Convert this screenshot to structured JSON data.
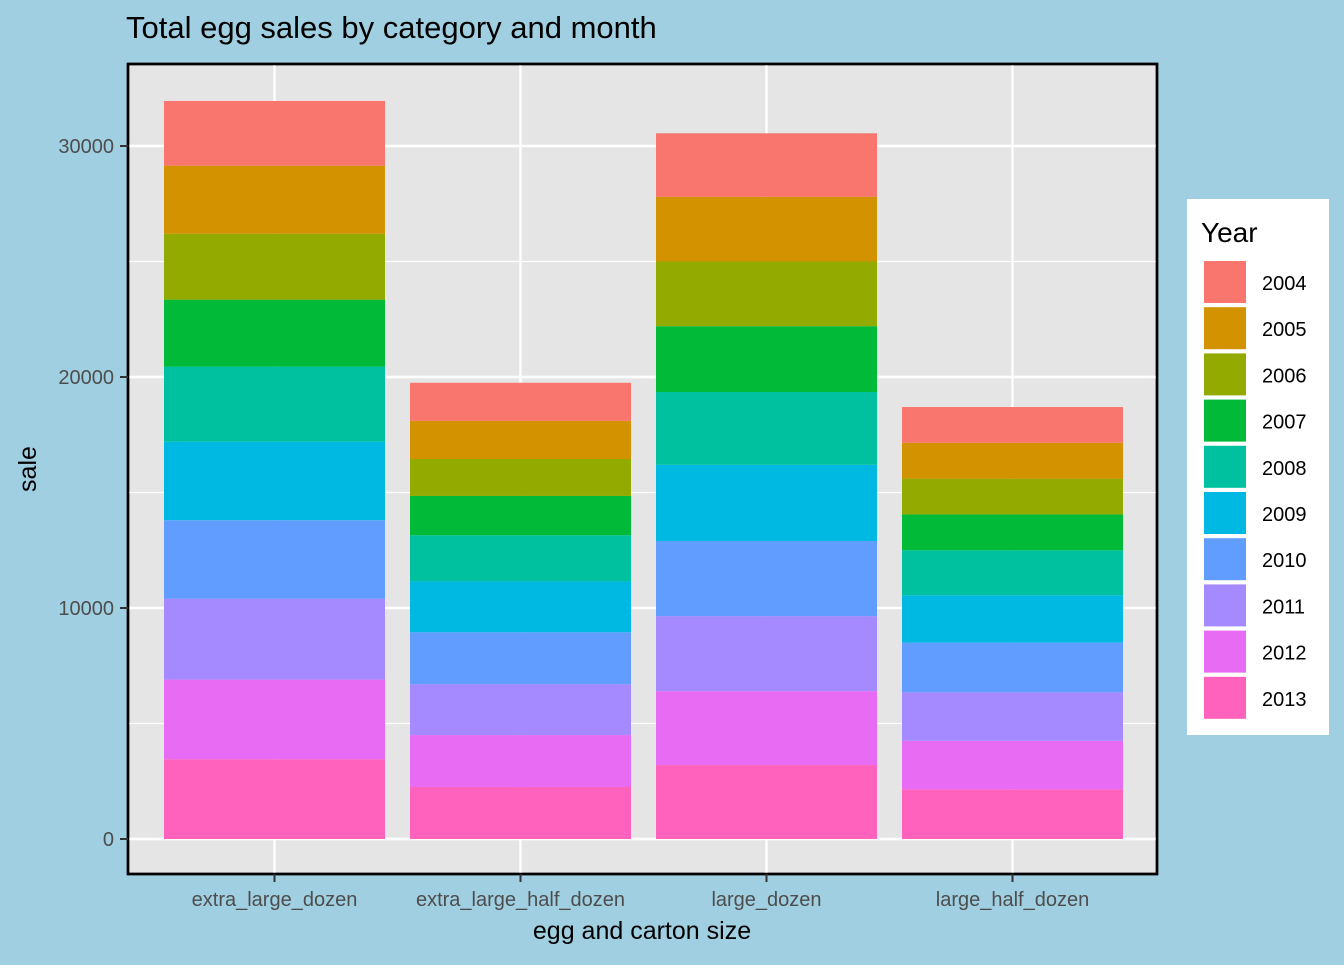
{
  "chart_data": {
    "type": "bar",
    "stacked": true,
    "title": "Total egg sales by category and month",
    "xlabel": "egg and carton size",
    "ylabel": "sale",
    "ylim": [
      0,
      33000
    ],
    "yticks": [
      0,
      10000,
      20000,
      30000
    ],
    "grid": true,
    "legend": {
      "title": "Year",
      "placement": "right"
    },
    "categories": [
      "extra_large_dozen",
      "extra_large_half_dozen",
      "large_dozen",
      "large_half_dozen"
    ],
    "series": [
      {
        "name": "2004",
        "color": "#F8766D",
        "values": [
          2800,
          1650,
          2750,
          1550
        ]
      },
      {
        "name": "2005",
        "color": "#D39200",
        "values": [
          2950,
          1650,
          2800,
          1550
        ]
      },
      {
        "name": "2006",
        "color": "#93AA00",
        "values": [
          2850,
          1600,
          2800,
          1550
        ]
      },
      {
        "name": "2007",
        "color": "#00BA38",
        "values": [
          2900,
          1700,
          2850,
          1550
        ]
      },
      {
        "name": "2008",
        "color": "#00C19F",
        "values": [
          3250,
          2000,
          3150,
          1950
        ]
      },
      {
        "name": "2009",
        "color": "#00B9E3",
        "values": [
          3400,
          2200,
          3300,
          2050
        ]
      },
      {
        "name": "2010",
        "color": "#619CFF",
        "values": [
          3400,
          2250,
          3250,
          2150
        ]
      },
      {
        "name": "2011",
        "color": "#A58AFF",
        "values": [
          3500,
          2200,
          3250,
          2100
        ]
      },
      {
        "name": "2012",
        "color": "#E76BF3",
        "values": [
          3450,
          2250,
          3200,
          2100
        ]
      },
      {
        "name": "2013",
        "color": "#FF62BC",
        "values": [
          3450,
          2250,
          3200,
          2150
        ]
      }
    ]
  }
}
